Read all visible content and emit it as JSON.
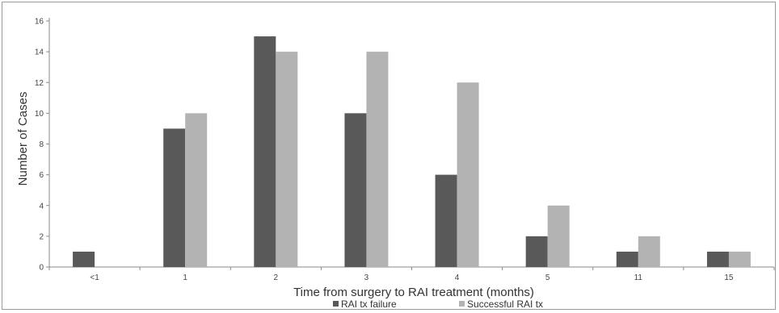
{
  "chart_data": {
    "type": "bar",
    "title": "",
    "xlabel": "Time from surgery to RAI treatment (months)",
    "ylabel": "Number of Cases",
    "categories": [
      "<1",
      "1",
      "2",
      "3",
      "4",
      "5",
      "11",
      "15"
    ],
    "series": [
      {
        "name": "RAI tx failure",
        "color": "#595959",
        "values": [
          1,
          9,
          15,
          10,
          6,
          2,
          1,
          1
        ]
      },
      {
        "name": "Successful RAI tx",
        "color": "#b3b3b3",
        "values": [
          0,
          10,
          14,
          14,
          12,
          4,
          2,
          1
        ]
      }
    ],
    "ylim": [
      0,
      16
    ],
    "yticks": [
      0,
      2,
      4,
      6,
      8,
      10,
      12,
      14,
      16
    ],
    "grid": false,
    "legend_position": "bottom-center"
  }
}
